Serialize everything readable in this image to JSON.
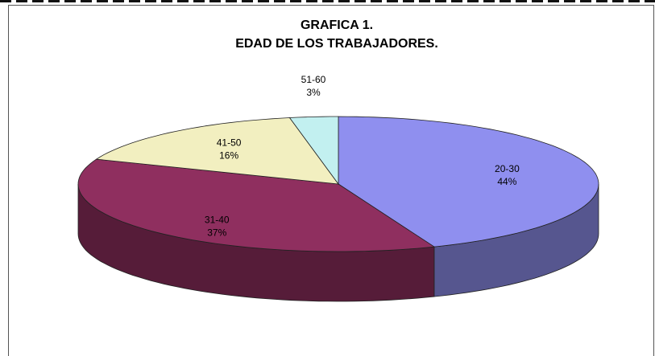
{
  "chart_data": {
    "type": "pie3d",
    "title": [
      "GRAFICA 1.",
      "EDAD DE LOS TRABAJADORES."
    ],
    "categories": [
      "20-30",
      "31-40",
      "41-50",
      "51-60"
    ],
    "values": [
      44,
      37,
      16,
      3
    ],
    "value_labels": [
      "44%",
      "37%",
      "16%",
      "3%"
    ],
    "colors": [
      "#8f8fef",
      "#8f2f5f",
      "#f2efc0",
      "#c2f0f0"
    ]
  }
}
